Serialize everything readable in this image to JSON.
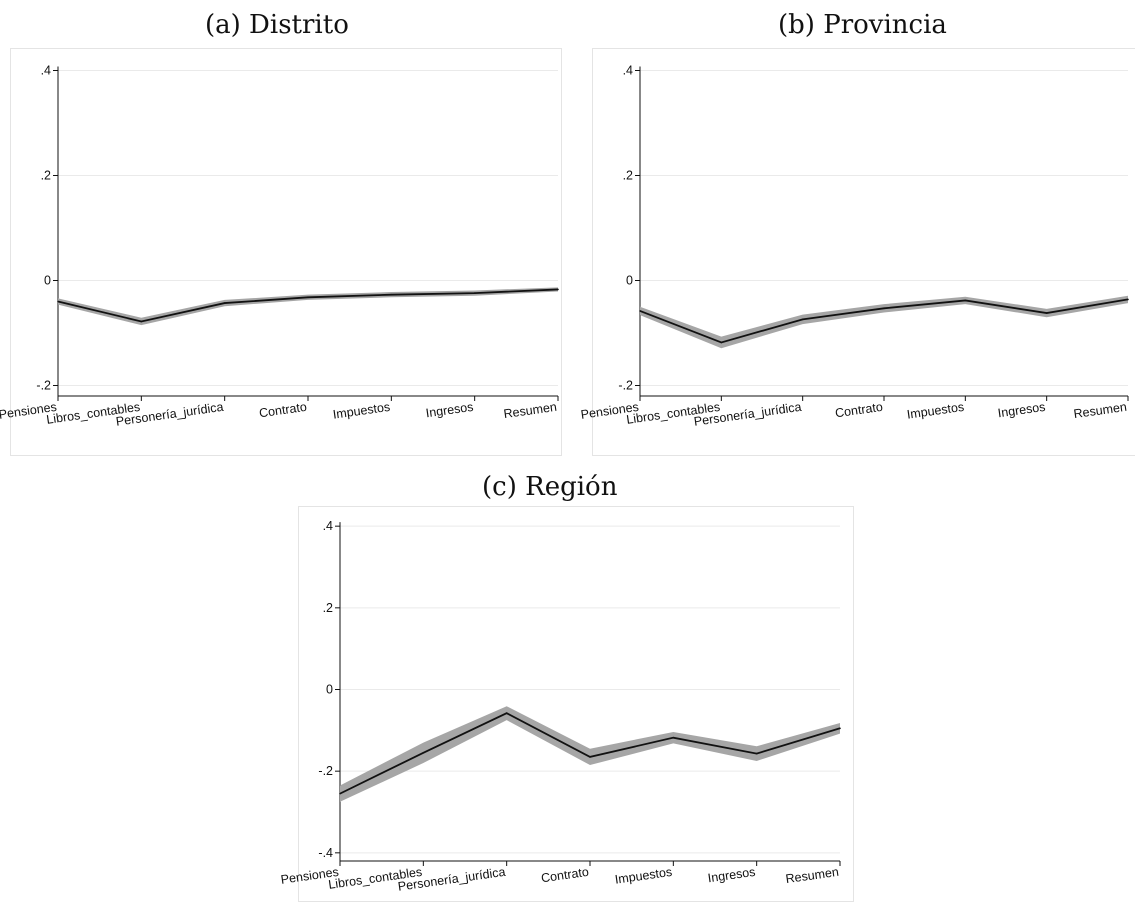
{
  "chart_data": [
    {
      "id": "a",
      "type": "line",
      "title": "(a) Distrito",
      "categories": [
        "Pensiones",
        "Libros_contables",
        "Personería_jurídica",
        "Contrato",
        "Impuestos",
        "Ingresos",
        "Resumen"
      ],
      "series": [
        {
          "values": [
            -0.04,
            -0.078,
            -0.043,
            -0.032,
            -0.027,
            -0.024,
            -0.017
          ],
          "ci_lower": [
            -0.046,
            -0.085,
            -0.049,
            -0.037,
            -0.032,
            -0.029,
            -0.021
          ],
          "ci_upper": [
            -0.034,
            -0.071,
            -0.037,
            -0.027,
            -0.022,
            -0.019,
            -0.013
          ]
        }
      ],
      "ylim": [
        -0.22,
        0.42
      ],
      "yticks": [
        -0.2,
        0,
        0.2,
        0.4
      ],
      "ytick_labels": [
        "-.2",
        "0",
        ".2",
        ".4"
      ],
      "xlabel": "",
      "ylabel": "",
      "grid": true
    },
    {
      "id": "b",
      "type": "line",
      "title": "(b) Provincia",
      "categories": [
        "Pensiones",
        "Libros_contables",
        "Personería_jurídica",
        "Contrato",
        "Impuestos",
        "Ingresos",
        "Resumen"
      ],
      "series": [
        {
          "values": [
            -0.058,
            -0.118,
            -0.074,
            -0.053,
            -0.038,
            -0.062,
            -0.036
          ],
          "ci_lower": [
            -0.066,
            -0.129,
            -0.083,
            -0.061,
            -0.045,
            -0.07,
            -0.043
          ],
          "ci_upper": [
            -0.05,
            -0.107,
            -0.065,
            -0.045,
            -0.031,
            -0.054,
            -0.029
          ]
        }
      ],
      "ylim": [
        -0.22,
        0.42
      ],
      "yticks": [
        -0.2,
        0,
        0.2,
        0.4
      ],
      "ytick_labels": [
        "-.2",
        "0",
        ".2",
        ".4"
      ],
      "xlabel": "",
      "ylabel": "",
      "grid": true
    },
    {
      "id": "c",
      "type": "line",
      "title": "(c) Región",
      "categories": [
        "Pensiones",
        "Libros_contables",
        "Personería_jurídica",
        "Contrato",
        "Impuestos",
        "Ingresos",
        "Resumen"
      ],
      "series": [
        {
          "values": [
            -0.255,
            -0.155,
            -0.058,
            -0.165,
            -0.118,
            -0.157,
            -0.095
          ],
          "ci_lower": [
            -0.275,
            -0.18,
            -0.075,
            -0.185,
            -0.132,
            -0.175,
            -0.108
          ],
          "ci_upper": [
            -0.235,
            -0.13,
            -0.041,
            -0.145,
            -0.104,
            -0.139,
            -0.082
          ]
        }
      ],
      "ylim": [
        -0.42,
        0.42
      ],
      "yticks": [
        -0.4,
        -0.2,
        0,
        0.2,
        0.4
      ],
      "ytick_labels": [
        "-.4",
        "-.2",
        "0",
        ".2",
        ".4"
      ],
      "xlabel": "",
      "ylabel": "",
      "grid": true
    }
  ],
  "colors": {
    "line": "#111111",
    "band": "#a6a6a6",
    "grid": "#eaeaea",
    "frame": "#e4e4e4",
    "axis": "#111111"
  }
}
